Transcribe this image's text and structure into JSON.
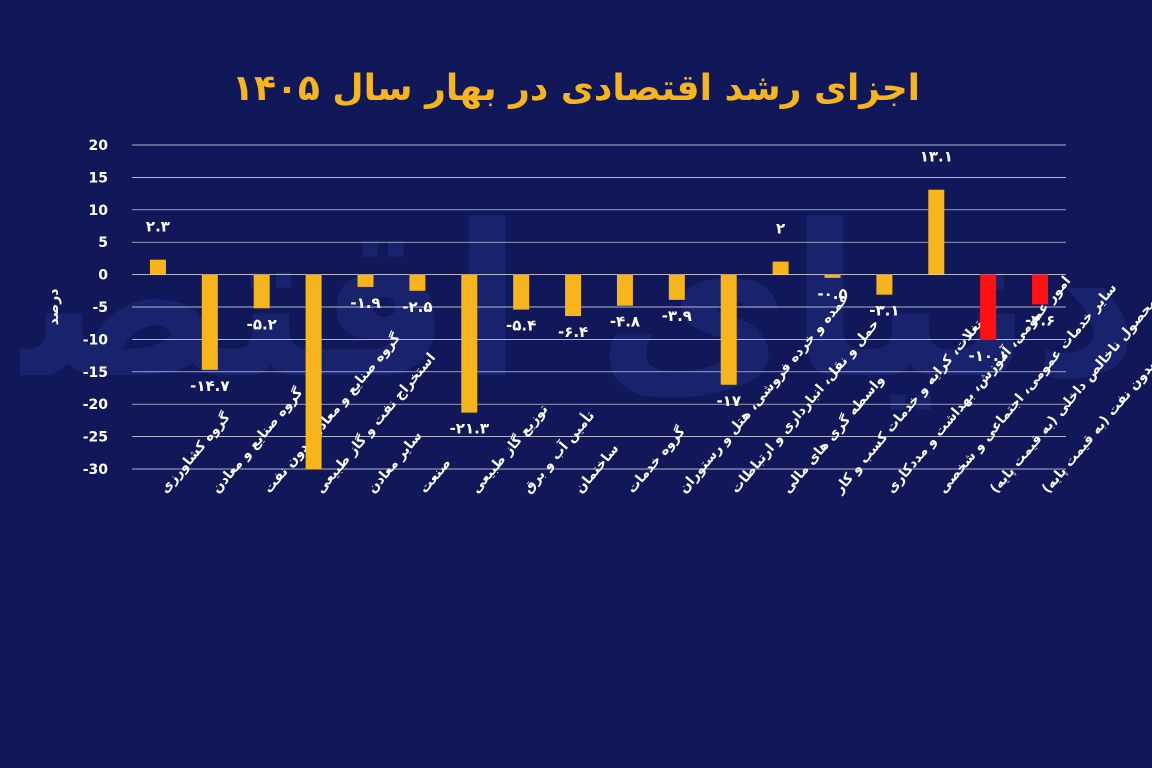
{
  "title": "اجزای رشد اقتصادی در بهار سال ۱۴۰۵",
  "watermark": "دنیای اقتصاد",
  "colors": {
    "background": "#10185a",
    "bar": "#f7b41b",
    "highlight": "#ff1111",
    "text": "#ffffff",
    "title": "#f7b41b"
  },
  "chart_data": {
    "type": "bar",
    "ylabel": "درصد",
    "ylim": [
      -30,
      20
    ],
    "yticks": [
      20,
      15,
      10,
      5,
      0,
      -5,
      -10,
      -15,
      -20,
      -25,
      -30
    ],
    "ytick_labels": [
      "20",
      "15",
      "10",
      "5",
      "0",
      "-5",
      "-10",
      "-15",
      "-20",
      "-25",
      "-30"
    ],
    "grid": true,
    "categories": [
      "گروه کشاورزی",
      "گروه صنایع و معادن",
      "گروه صنایع و معادن بدون نفت",
      "استخراج نفت و گاز طبیعی",
      "سایر معادن",
      "صنعت",
      "توزیع گاز طبیعی",
      "تأمین آب و برق",
      "ساختمان",
      "گروه خدمات",
      "عمده و خرده فروشی، هتل و رستوران",
      "حمل و نقل، انبارداری و ارتباطات",
      "واسطه گری های مالی",
      "مستغلات، کرایه و خدمات کسب و کار",
      "امور عمومی، آموزش، بهداشت و مددکاری",
      "سایر خدمات عمومی، اجتماعی و شخصی",
      "محصول ناخالص داخلی (به قیمت پایه)",
      "محصول ناخالص داخلی بدون نفت (به قیمت پایه)"
    ],
    "values": [
      2.3,
      -14.7,
      -5.2,
      -30,
      -1.9,
      -2.5,
      -21.3,
      -5.4,
      -6.4,
      -4.8,
      -3.9,
      -17,
      2,
      -0.5,
      -3.1,
      13.1,
      -10.1,
      -4.6
    ],
    "data_labels": [
      "۲.۳",
      "-۱۴.۷",
      "-۵.۲",
      "",
      "-۱.۹",
      "-۲.۵",
      "-۲۱.۳",
      "-۵.۴",
      "-۶.۴",
      "-۴.۸",
      "-۳.۹",
      "-۱۷",
      "۲",
      "-۰.۵",
      "-۳.۱",
      "۱۳.۱",
      "-۱۰.۱",
      "-۴.۶"
    ],
    "highlight": [
      false,
      false,
      false,
      false,
      false,
      false,
      false,
      false,
      false,
      false,
      false,
      false,
      false,
      false,
      false,
      false,
      true,
      true
    ]
  }
}
